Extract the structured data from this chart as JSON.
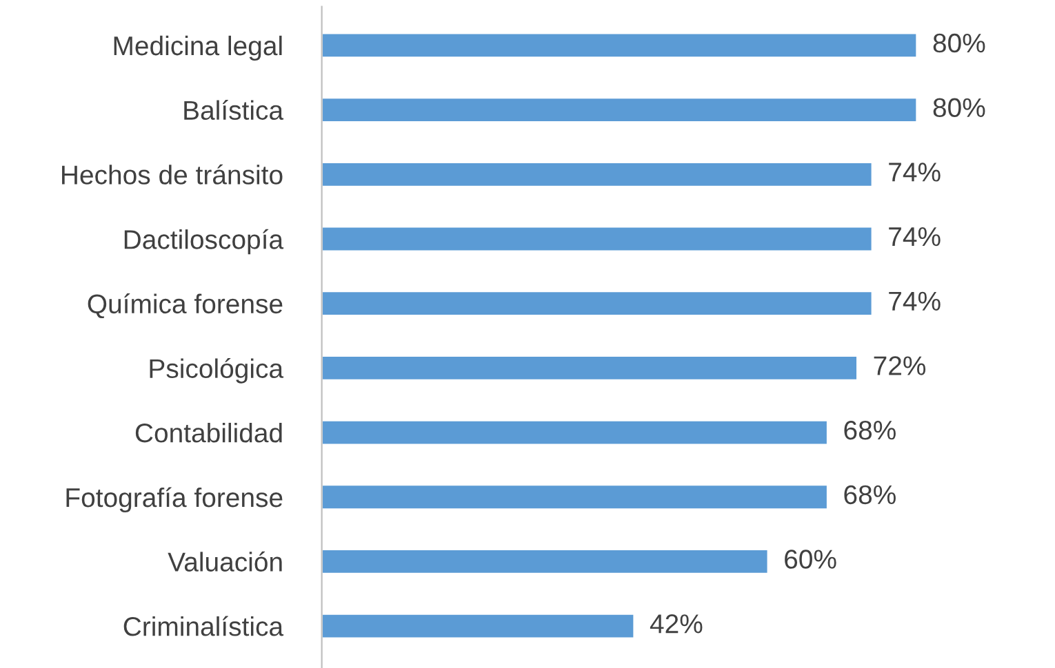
{
  "chart_data": {
    "type": "bar",
    "orientation": "horizontal",
    "categories": [
      "Medicina legal",
      "Balística",
      "Hechos de tránsito",
      "Dactiloscopía",
      "Química forense",
      "Psicológica",
      "Contabilidad",
      "Fotografía forense",
      "Valuación",
      "Criminalística"
    ],
    "values": [
      80,
      80,
      74,
      74,
      74,
      72,
      68,
      68,
      60,
      42
    ],
    "value_labels": [
      "80%",
      "80%",
      "74%",
      "74%",
      "74%",
      "72%",
      "68%",
      "68%",
      "60%",
      "42%"
    ],
    "color": "#5b9bd5",
    "grid": false,
    "legend": false
  }
}
